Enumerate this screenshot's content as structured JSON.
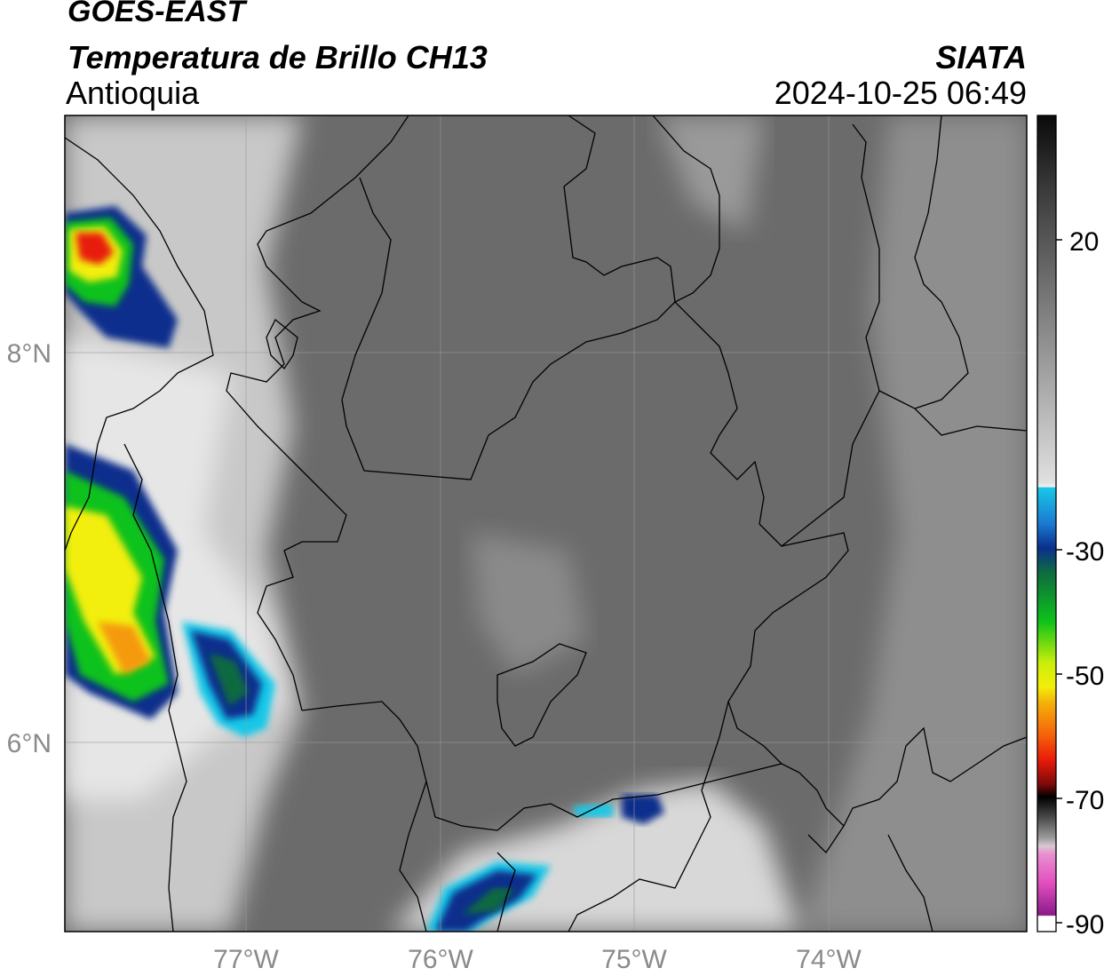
{
  "header": {
    "satellite": "GOES-EAST",
    "product": "Temperatura de Brillo CH13",
    "region": "Antioquia",
    "agency": "SIATA",
    "datetime": "2024-10-25 06:49"
  },
  "map": {
    "lon_labels": [
      "77°W",
      "76°W",
      "75°W",
      "74°W"
    ],
    "lat_labels": [
      "8°N",
      "6°N"
    ]
  },
  "colorbar": {
    "tick_labels": [
      "20",
      "-30",
      "-50",
      "-70",
      "-90"
    ],
    "colors": {
      "dark": "#111111",
      "gray": "#7a7a7a",
      "white": "#f2f2f2",
      "cyan": "#19c8e8",
      "blue": "#0a2f8c",
      "green": "#0ec21a",
      "yellow": "#f2ee0a",
      "orange": "#f59a0a",
      "red": "#e81a0a",
      "black": "#000000",
      "pink": "#e34fc0",
      "purple": "#8a1a8a"
    }
  }
}
